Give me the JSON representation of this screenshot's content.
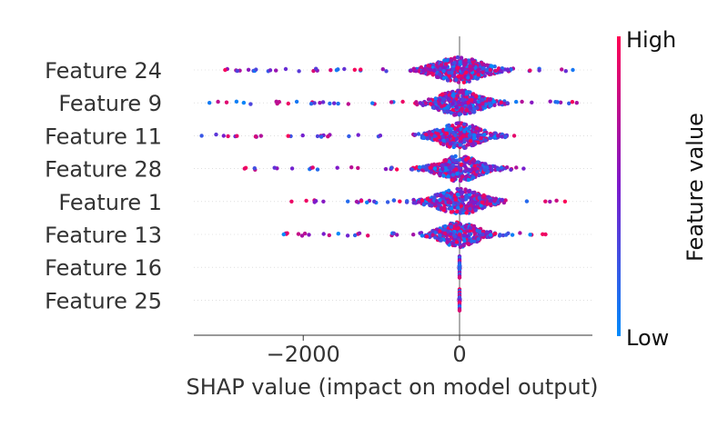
{
  "chart_data": {
    "type": "scatter",
    "subtype": "shap-beeswarm",
    "title": "",
    "xlabel": "SHAP value (impact on model output)",
    "xlim": [
      -3400,
      1700
    ],
    "xticks": [
      -2000,
      0
    ],
    "xtick_labels": [
      "−2000",
      "0"
    ],
    "features": [
      {
        "name": "Feature 24",
        "min": -3000,
        "max": 1450,
        "spread": 330,
        "density": 1.0
      },
      {
        "name": "Feature 9",
        "min": -3200,
        "max": 1500,
        "spread": 300,
        "density": 0.95
      },
      {
        "name": "Feature 11",
        "min": -3300,
        "max": 700,
        "spread": 290,
        "density": 0.95
      },
      {
        "name": "Feature 28",
        "min": -2750,
        "max": 820,
        "spread": 280,
        "density": 0.85
      },
      {
        "name": "Feature 1",
        "min": -2150,
        "max": 1350,
        "spread": 320,
        "density": 0.85
      },
      {
        "name": "Feature 13",
        "min": -2250,
        "max": 1100,
        "spread": 260,
        "density": 0.75
      },
      {
        "name": "Feature 16",
        "min": -5,
        "max": 5,
        "spread": 3,
        "density": 0.15
      },
      {
        "name": "Feature 25",
        "min": -5,
        "max": 5,
        "spread": 3,
        "density": 0.15
      }
    ],
    "colorbar": {
      "label": "Feature value",
      "high_label": "High",
      "low_label": "Low",
      "high_color": "#ff0052",
      "low_color": "#008bfb"
    }
  }
}
